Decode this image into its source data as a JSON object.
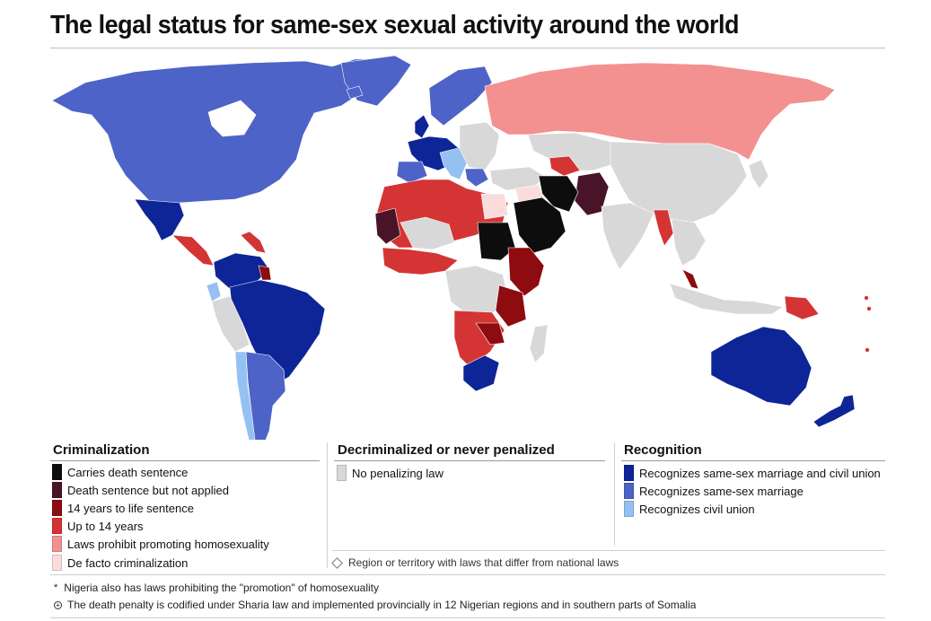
{
  "title": "The legal status for same-sex sexual activity around the world",
  "colors": {
    "death": "#0d0d0d",
    "death_not_applied": "#4a1428",
    "life": "#8e0b10",
    "up14": "#d53434",
    "promo": "#f39191",
    "defacto": "#fbdcdc",
    "no_law": "#d8d8d8",
    "marriage_civil": "#0d2596",
    "marriage": "#4e63c7",
    "civil": "#95c1f2",
    "ocean": "#ffffff"
  },
  "legend": {
    "criminalization": {
      "title": "Criminalization",
      "items": [
        {
          "label": "Carries death sentence",
          "color": "#0d0d0d"
        },
        {
          "label": "Death sentence but not applied",
          "color": "#4a1428"
        },
        {
          "label": "14 years to life sentence",
          "color": "#8e0b10"
        },
        {
          "label": "Up to 14 years",
          "color": "#d53434"
        },
        {
          "label": "Laws prohibit promoting homosexuality",
          "color": "#f39191"
        },
        {
          "label": "De facto criminalization",
          "color": "#fbdcdc"
        }
      ]
    },
    "decriminalized": {
      "title": "Decriminalized or never penalized",
      "items": [
        {
          "label": "No penalizing law",
          "color": "#d8d8d8"
        }
      ]
    },
    "recognition": {
      "title": "Recognition",
      "items": [
        {
          "label": "Recognizes same-sex marriage and civil union",
          "color": "#0d2596"
        },
        {
          "label": "Recognizes same-sex marriage",
          "color": "#4e63c7"
        },
        {
          "label": "Recognizes civil union",
          "color": "#95c1f2"
        }
      ]
    },
    "region_note": "Region or territory with laws that differ from national laws"
  },
  "footnotes": [
    {
      "mark": "*",
      "text": "Nigeria also has laws prohibiting the \"promotion\" of homosexuality"
    },
    {
      "mark": "+",
      "text": "The death penalty is codified under Sharia law and implemented provincially in 12 Nigerian regions and in southern parts of Somalia"
    }
  ]
}
